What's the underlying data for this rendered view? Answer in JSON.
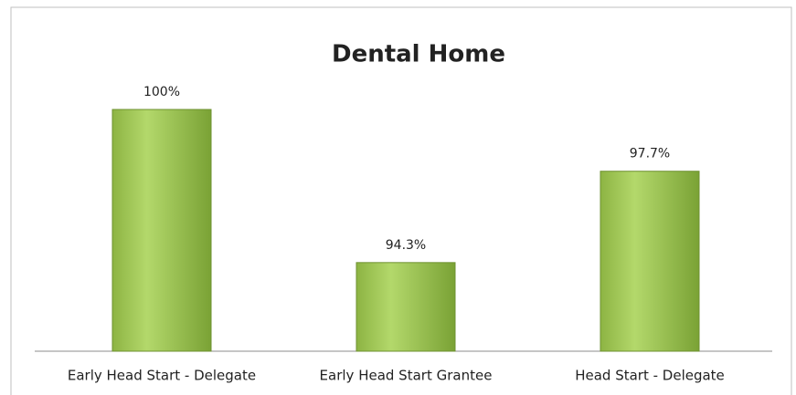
{
  "chart_data": {
    "type": "bar",
    "title": "Dental Home",
    "categories": [
      "Early Head Start - Delegate",
      "Early Head Start Grantee",
      "Head Start - Delegate"
    ],
    "values": [
      100,
      94.3,
      97.7
    ],
    "value_labels": [
      "100%",
      "94.3%",
      "97.7%"
    ],
    "color": "#9bbb59",
    "ylim": [
      91,
      100
    ]
  }
}
